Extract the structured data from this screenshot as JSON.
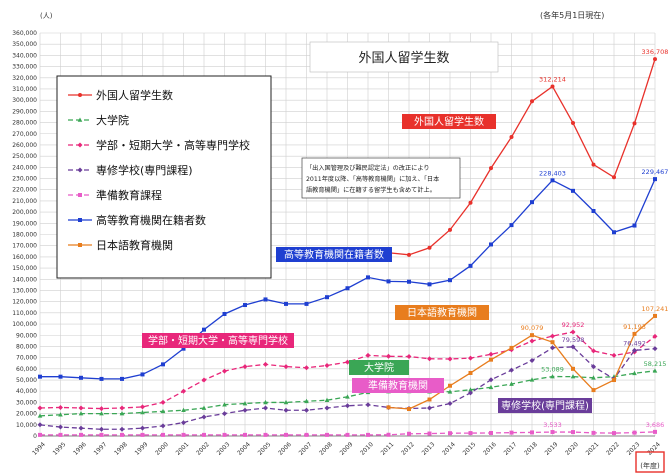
{
  "chart_data": {
    "type": "line",
    "title": "外国人留学生数",
    "unit_label": "(人)",
    "date_note": "(各年5月1日現在)",
    "xlabel": "(年度)",
    "x": [
      "1994",
      "1995",
      "1996",
      "1997",
      "1998",
      "1999",
      "2000",
      "2001",
      "2002",
      "2003",
      "2004",
      "2005",
      "2006",
      "2007",
      "2008",
      "2009",
      "2010",
      "2011",
      "2012",
      "2013",
      "2014",
      "2015",
      "2016",
      "2017",
      "2018",
      "2019",
      "2020",
      "2021",
      "2022",
      "2023",
      "2024"
    ],
    "ylim": [
      0,
      360000
    ],
    "ystep": 10000,
    "y_ticks": [
      "0",
      "10,000",
      "20,000",
      "30,000",
      "40,000",
      "50,000",
      "60,000",
      "70,000",
      "80,000",
      "90,000",
      "100,000",
      "110,000",
      "120,000",
      "130,000",
      "140,000",
      "150,000",
      "160,000",
      "170,000",
      "180,000",
      "190,000",
      "200,000",
      "210,000",
      "220,000",
      "230,000",
      "240,000",
      "250,000",
      "260,000",
      "270,000",
      "280,000",
      "290,000",
      "300,000",
      "310,000",
      "320,000",
      "330,000",
      "340,000",
      "350,000",
      "360,000"
    ],
    "series": [
      {
        "name": "外国人留学生数",
        "color": "#e8312b",
        "dash": "",
        "marker": "circle",
        "start": 17,
        "values": [
          null,
          null,
          null,
          null,
          null,
          null,
          null,
          null,
          null,
          null,
          null,
          null,
          null,
          null,
          null,
          null,
          null,
          163697,
          161848,
          168145,
          184155,
          208379,
          239287,
          267042,
          298980,
          312214,
          279597,
          242444,
          231146,
          279274,
          336708
        ]
      },
      {
        "name": "大学院",
        "color": "#3aa655",
        "dash": "5,3",
        "marker": "triangle",
        "start": 0,
        "values": [
          18000,
          19000,
          20000,
          20000,
          20000,
          21000,
          22000,
          23000,
          25000,
          28000,
          29000,
          30000,
          30000,
          31000,
          32000,
          35000,
          39000,
          39700,
          39800,
          39600,
          39500,
          41300,
          43500,
          46400,
          50200,
          53089,
          53056,
          52000,
          53000,
          56000,
          58215
        ]
      },
      {
        "name": "学部・短期大学・高等専門学校",
        "color": "#e8277a",
        "dash": "5,3",
        "marker": "diamond",
        "start": 0,
        "values": [
          25000,
          25500,
          25000,
          24500,
          25000,
          26000,
          30000,
          40000,
          50000,
          58000,
          62000,
          64000,
          62000,
          61000,
          63000,
          66000,
          72000,
          71200,
          71000,
          69000,
          68800,
          69600,
          73000,
          77000,
          84900,
          89200,
          92952,
          76000,
          72000,
          75000,
          89000
        ]
      },
      {
        "name": "専修学校(専門課程)",
        "color": "#6a3d9a",
        "dash": "5,3",
        "marker": "diamond",
        "start": 0,
        "values": [
          10000,
          8000,
          7000,
          6000,
          6000,
          7000,
          9000,
          12000,
          17000,
          20000,
          23000,
          25000,
          23000,
          23000,
          25000,
          27000,
          27900,
          25500,
          24600,
          25000,
          29000,
          38500,
          50200,
          58800,
          67500,
          78800,
          79598,
          62000,
          51000,
          76492,
          78000
        ]
      },
      {
        "name": "準備教育課程",
        "color": "#e85cc8",
        "dash": "5,3",
        "marker": "square",
        "start": 0,
        "values": [
          1000,
          1000,
          1000,
          1000,
          1000,
          1000,
          1000,
          1000,
          1000,
          1000,
          1000,
          1000,
          1000,
          1000,
          1000,
          1000,
          1000,
          1100,
          2000,
          2200,
          2500,
          2600,
          2700,
          3000,
          3200,
          3533,
          3500,
          2800,
          2600,
          3000,
          3686
        ]
      },
      {
        "name": "高等教育機関在籍者数",
        "color": "#1f3fd1",
        "dash": "",
        "marker": "square",
        "start": 0,
        "values": [
          53000,
          53000,
          52000,
          51000,
          51000,
          55000,
          64000,
          78000,
          95000,
          109000,
          117000,
          122000,
          118000,
          118000,
          124000,
          132000,
          141700,
          138100,
          137800,
          135500,
          139200,
          152000,
          171100,
          188400,
          208900,
          228403,
          219000,
          201000,
          182000,
          188000,
          229467
        ]
      },
      {
        "name": "日本語教育機関",
        "color": "#e87d1e",
        "dash": "",
        "marker": "square",
        "start": 17,
        "values": [
          null,
          null,
          null,
          null,
          null,
          null,
          null,
          null,
          null,
          null,
          null,
          null,
          null,
          null,
          null,
          null,
          null,
          25600,
          24100,
          32600,
          44900,
          56300,
          68200,
          78700,
          90079,
          83800,
          60000,
          41000,
          50000,
          91193,
          107241
        ]
      }
    ],
    "data_labels": [
      {
        "series": 0,
        "index": 25,
        "text": "312,214"
      },
      {
        "series": 0,
        "index": 30,
        "text": "336,708"
      },
      {
        "series": 5,
        "index": 25,
        "text": "228,403"
      },
      {
        "series": 5,
        "index": 30,
        "text": "229,467"
      },
      {
        "series": 6,
        "index": 24,
        "text": "90,079"
      },
      {
        "series": 6,
        "index": 29,
        "text": "91,193"
      },
      {
        "series": 6,
        "index": 30,
        "text": "107,241"
      },
      {
        "series": 2,
        "index": 26,
        "text": "92,952"
      },
      {
        "series": 3,
        "index": 26,
        "text": "79,598"
      },
      {
        "series": 3,
        "index": 29,
        "text": "76,492"
      },
      {
        "series": 1,
        "index": 25,
        "text": "53,089"
      },
      {
        "series": 1,
        "index": 30,
        "text": "58,215"
      },
      {
        "series": 4,
        "index": 25,
        "text": "3,533"
      },
      {
        "series": 4,
        "index": 30,
        "text": "3,686"
      }
    ],
    "series_tags": [
      {
        "text": "外国人留学生数",
        "color": "#e8312b"
      },
      {
        "text": "高等教育機関在籍者数",
        "color": "#1f3fd1"
      },
      {
        "text": "日本語教育機関",
        "color": "#e87d1e"
      },
      {
        "text": "学部・短期大学・高等専門学校",
        "color": "#e8277a"
      },
      {
        "text": "大学院",
        "color": "#3aa655"
      },
      {
        "text": "準備教育機関",
        "color": "#e85cc8"
      },
      {
        "text": "専修学校(専門課程)",
        "color": "#6a3d9a"
      }
    ],
    "annotation": {
      "lines": [
        "「出入国管理及び難民認定法」の改正により",
        "2011年度以降、「高等教育機関」に加え、「日本",
        "語教育機関」に在籍する留学生も含めて計上。"
      ]
    },
    "legend_placement": "top-left",
    "grid": true
  }
}
